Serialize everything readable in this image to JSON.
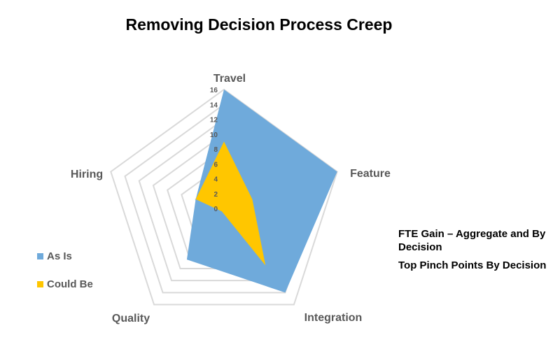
{
  "chart_data": {
    "type": "radar",
    "title": "Removing Decision Process Creep",
    "axes": [
      "Travel",
      "Feature",
      "Integration",
      "Quality",
      "Hiring"
    ],
    "rlim": [
      0,
      16
    ],
    "ticks": [
      "0",
      "2",
      "4",
      "6",
      "8",
      "10",
      "12",
      "14",
      "16"
    ],
    "series": [
      {
        "name": "As Is",
        "color": "#6FAADB",
        "values": [
          16,
          16,
          14,
          8.5,
          4
        ]
      },
      {
        "name": "Could Be",
        "color": "#FFC600",
        "values": [
          9,
          4,
          9.5,
          0.5,
          4
        ]
      }
    ],
    "legend": "left"
  },
  "notes": [
    "FTE Gain – Aggregate and By Decision",
    "Top Pinch Points By Decision"
  ]
}
